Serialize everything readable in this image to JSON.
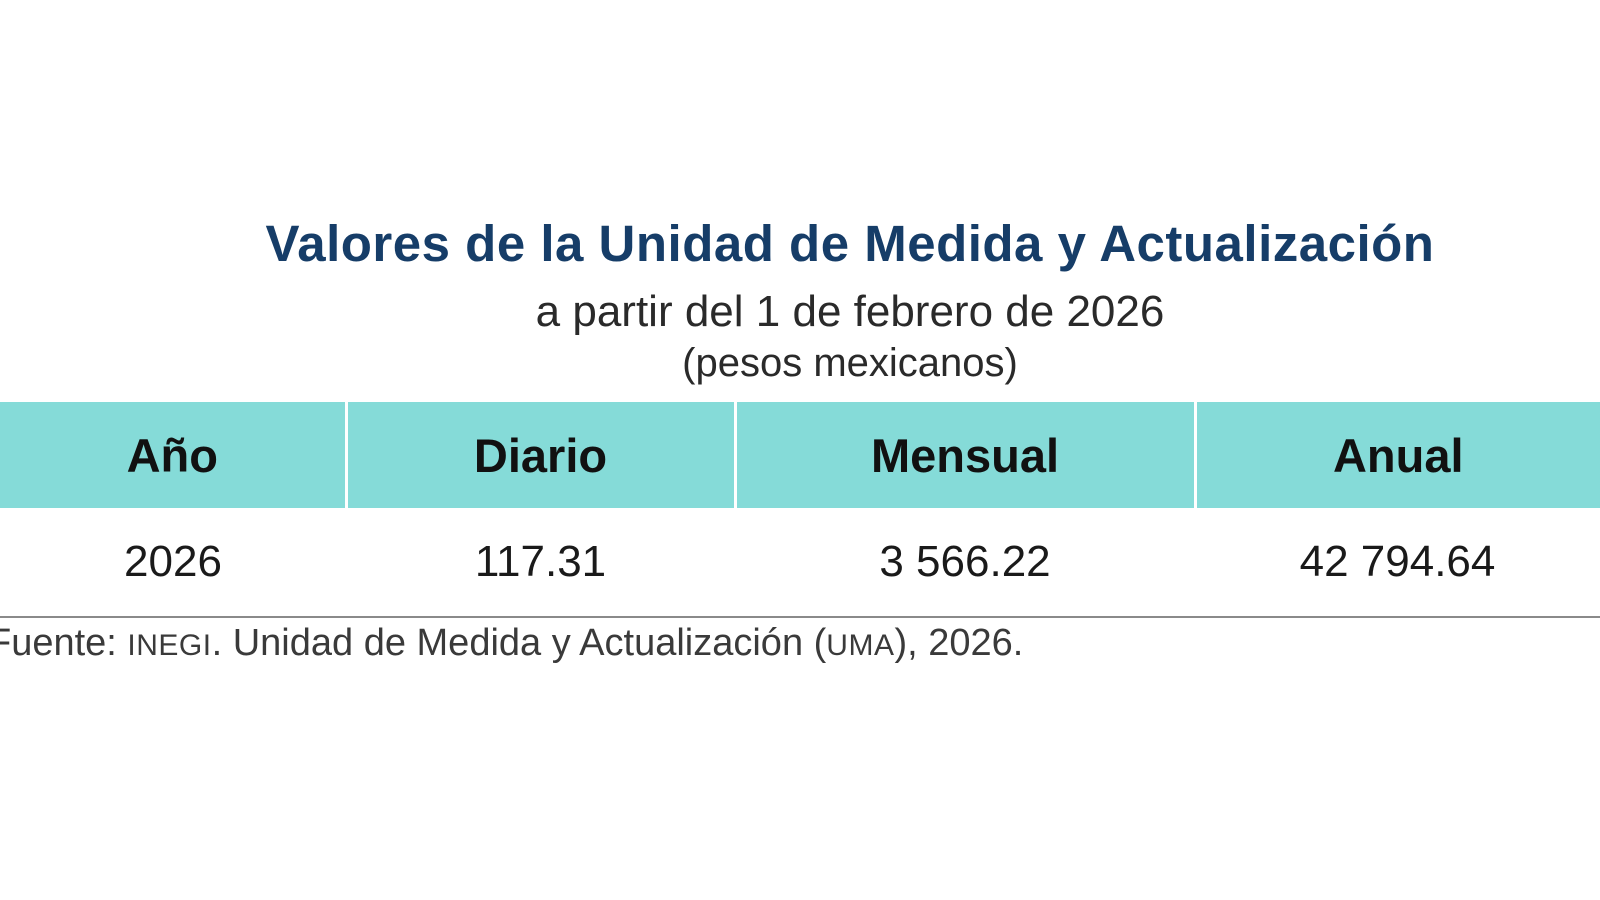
{
  "heading": {
    "title": "Valores de la Unidad de Medida y Actualización",
    "subtitle": "a partir del 1 de febrero de 2026",
    "units": "(pesos mexicanos)"
  },
  "table": {
    "headers": [
      "Año",
      "Diario",
      "Mensual",
      "Anual"
    ],
    "rows": [
      [
        "2026",
        "117.31",
        "3 566.22",
        "42 794.64"
      ]
    ]
  },
  "source": {
    "prefix": "Fuente: ",
    "org_abbr": "INEGI",
    "middle": ". Unidad de Medida y Actualización (",
    "uma_abbr": "UMA",
    "suffix": "), 2026."
  },
  "colors": {
    "title": "#163d68",
    "header_background": "#85dbd8"
  }
}
